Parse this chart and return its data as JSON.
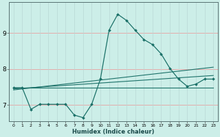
{
  "xlabel": "Humidex (Indice chaleur)",
  "background_color": "#cceee8",
  "grid_color_h": "#e8a0a0",
  "grid_color_v": "#b8d8d4",
  "line_color": "#1a7068",
  "x_ticks": [
    0,
    1,
    2,
    3,
    4,
    5,
    6,
    7,
    8,
    9,
    10,
    11,
    12,
    13,
    14,
    15,
    16,
    17,
    18,
    19,
    20,
    21,
    22,
    23
  ],
  "y_ticks": [
    7,
    8,
    9
  ],
  "ylim": [
    6.55,
    9.85
  ],
  "xlim": [
    -0.5,
    23.5
  ],
  "flat_line": {
    "x": [
      0,
      23
    ],
    "y": [
      7.48,
      7.48
    ]
  },
  "rising_line1": {
    "x": [
      0,
      23
    ],
    "y": [
      7.45,
      7.82
    ]
  },
  "rising_line2": {
    "x": [
      0,
      23
    ],
    "y": [
      7.42,
      8.05
    ]
  },
  "main_series": {
    "x": [
      0,
      1,
      2,
      3,
      4,
      5,
      6,
      7,
      8,
      9,
      10,
      11,
      12,
      13,
      14,
      15,
      16,
      17,
      18,
      19,
      20,
      21,
      22,
      23
    ],
    "y": [
      7.48,
      7.48,
      6.88,
      7.02,
      7.02,
      7.02,
      7.02,
      6.72,
      6.65,
      7.02,
      7.72,
      9.08,
      9.52,
      9.35,
      9.08,
      8.82,
      8.68,
      8.42,
      8.02,
      7.72,
      7.52,
      7.58,
      7.72,
      7.72
    ]
  }
}
